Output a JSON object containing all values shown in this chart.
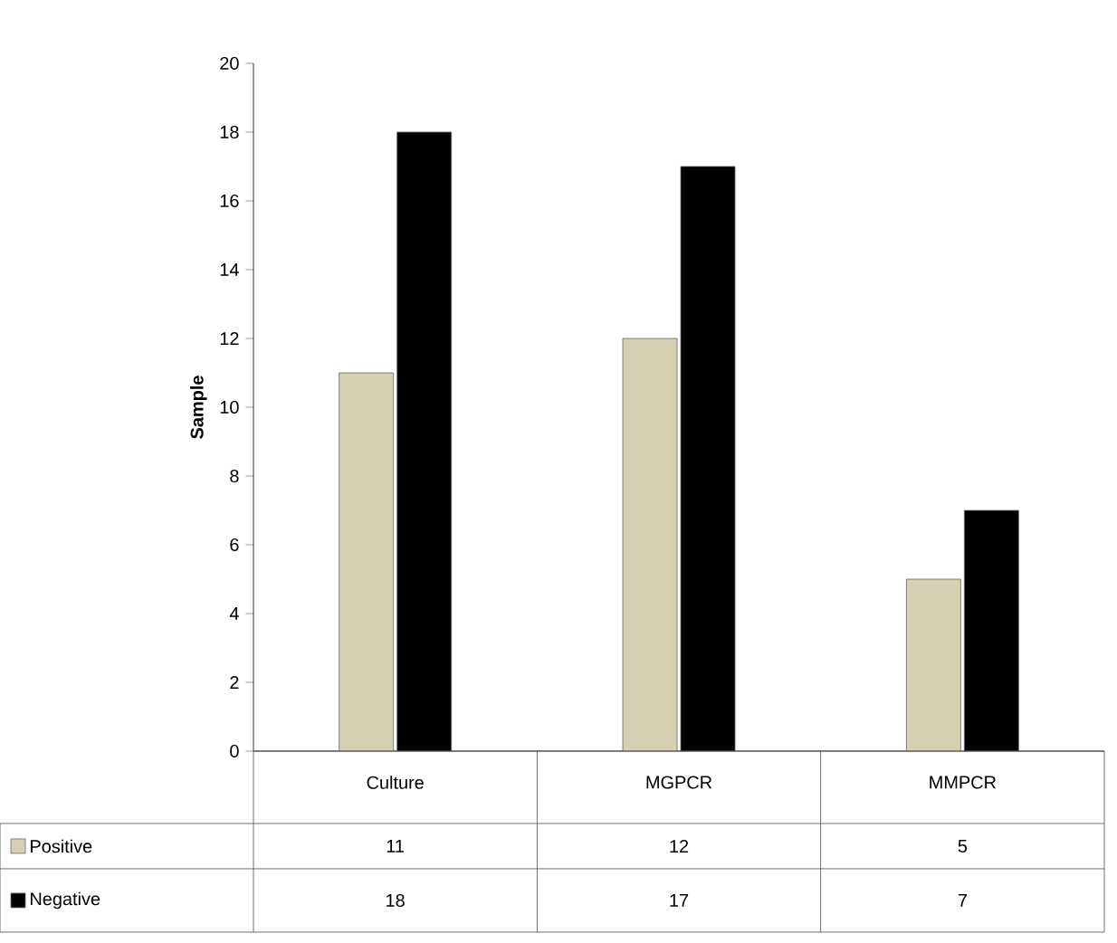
{
  "chart_data": {
    "type": "bar",
    "ylabel": "Sample",
    "categories": [
      "Culture",
      "MGPCR",
      "MMPCR"
    ],
    "series": [
      {
        "name": "Positive",
        "color": "#d6d0b2",
        "values": [
          11,
          12,
          5
        ]
      },
      {
        "name": "Negative",
        "color": "#000000",
        "values": [
          18,
          17,
          7
        ]
      }
    ],
    "ylim": [
      0,
      20
    ],
    "yticks": [
      0,
      2,
      4,
      6,
      8,
      10,
      12,
      14,
      16,
      18,
      20
    ],
    "grid": false,
    "legend": "bottom",
    "data_labels": true
  }
}
